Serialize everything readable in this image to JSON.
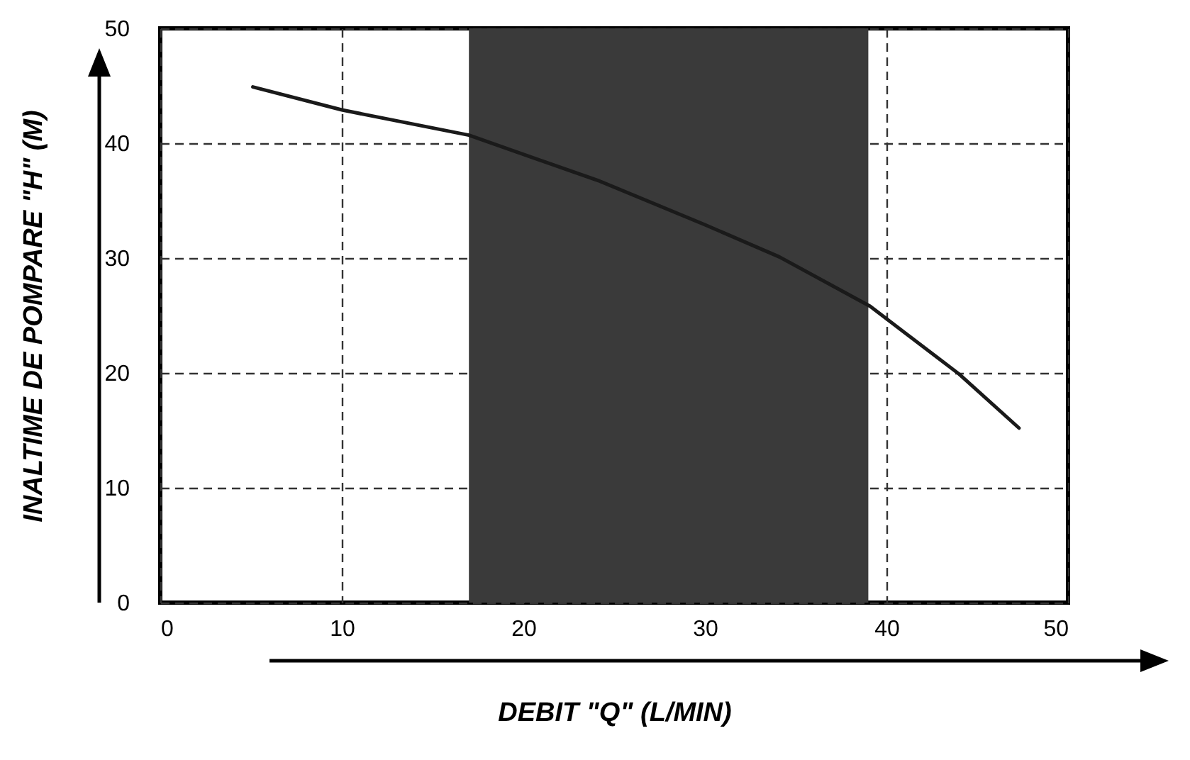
{
  "chart_data": {
    "type": "line",
    "xlabel": "DEBIT \"Q\" (L/MIN)",
    "ylabel": "INALTIME DE POMPARE \"H\" (M)",
    "x": [
      5.1,
      10,
      17,
      24.2,
      30,
      34.1,
      39.1,
      44,
      47.3
    ],
    "series": [
      {
        "color": "#1a1a1a",
        "values": [
          44.9,
          42.9,
          40.7,
          36.7,
          32.9,
          30.1,
          25.8,
          19.9,
          15.2
        ]
      }
    ],
    "xlim": [
      0,
      50
    ],
    "ylim": [
      0,
      50
    ],
    "xticks": [
      0,
      10,
      20,
      30,
      40,
      50
    ],
    "yticks": [
      0,
      10,
      20,
      30,
      40,
      50
    ],
    "bands": [
      {
        "axis": "x",
        "from": 17,
        "to": 39,
        "color": "#3a3a3a"
      }
    ],
    "grid": true,
    "marker": "none",
    "line_style": "solid"
  }
}
